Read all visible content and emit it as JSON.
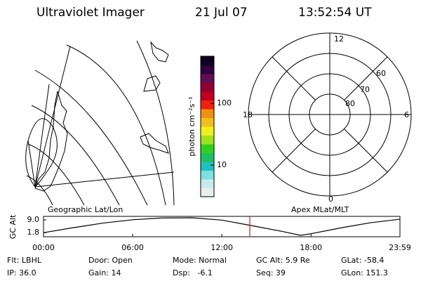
{
  "header": {
    "title": "Ultraviolet Imager",
    "date": "21 Jul 07",
    "time": "13:52:54 UT"
  },
  "colorbar": {
    "label": "photon cm⁻²s⁻¹",
    "log": true,
    "ylim": [
      3.1,
      577
    ],
    "yticks": [
      10,
      100
    ],
    "colors": [
      "#e8eef0",
      "#c8ecec",
      "#7fe0e0",
      "#20c0c0",
      "#20c060",
      "#30d020",
      "#a0e020",
      "#f0f020",
      "#f0c020",
      "#f09010",
      "#f02010",
      "#c00020",
      "#900030",
      "#601050",
      "#300040",
      "#100020"
    ]
  },
  "polar": {
    "mlt_labels": [
      "12",
      "18",
      "6",
      "0"
    ],
    "lat_labels": [
      "60",
      "70",
      "80"
    ]
  },
  "chart_data": {
    "type": "line",
    "left_label": "Geographic Lat/Lon",
    "right_label": "Apex MLat/MLT",
    "y_label": "GC Alt",
    "x": [
      0,
      2,
      4,
      6,
      8,
      10,
      12,
      14,
      16,
      17.3,
      18,
      20,
      22,
      23.983
    ],
    "values": [
      1.8,
      4.6,
      7.2,
      9.1,
      10.1,
      10.2,
      8.9,
      5.8,
      2.6,
      0.3,
      1.2,
      4.5,
      7.4,
      9.4
    ],
    "color": "#000000",
    "xlim": [
      0,
      23.983
    ],
    "xticks": [
      {
        "value": 0,
        "label": "00:00"
      },
      {
        "value": 6,
        "label": "06:00"
      },
      {
        "value": 12,
        "label": "12:00"
      },
      {
        "value": 18,
        "label": "18:00"
      },
      {
        "value": 23.983,
        "label": "23:59"
      }
    ],
    "ylim": [
      -0.5,
      11.0
    ],
    "yticks": [
      {
        "value": 1.8,
        "label": "1.8"
      },
      {
        "value": 9.0,
        "label": "9.0"
      }
    ],
    "marker_x": 13.88,
    "marker_color": "#cc2020"
  },
  "footer": {
    "rows": [
      [
        "Flt: LBHL",
        "Door: Open",
        "Mode: Normal",
        "GC Alt: 5.9 Re",
        "GLat: -58.4"
      ],
      [
        "IP: 36.0",
        "Gain: 14",
        "Dsp:   -6.1",
        "Seq: 39",
        "GLon: 151.3"
      ]
    ]
  }
}
